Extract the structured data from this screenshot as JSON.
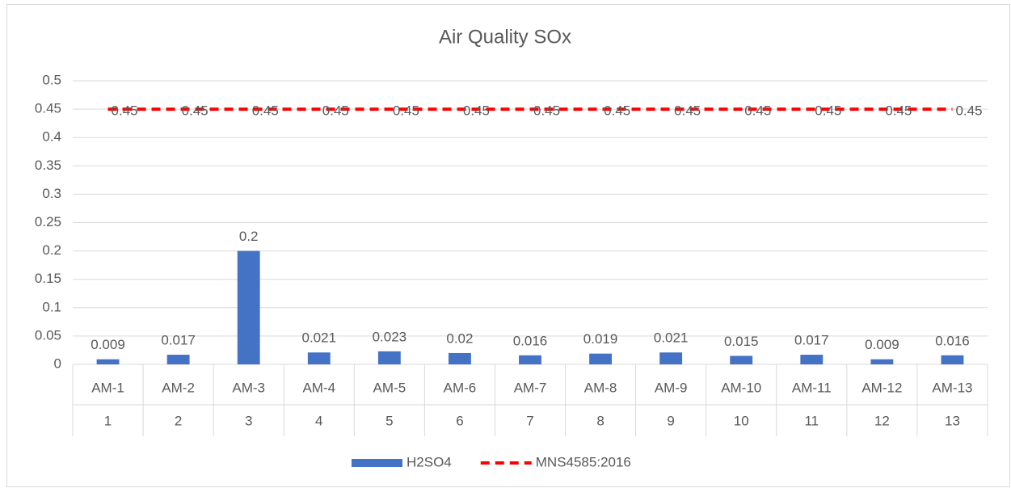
{
  "chart_data": {
    "type": "bar",
    "title": "Air Quality SOx",
    "categories": [
      "AM-1",
      "AM-2",
      "AM-3",
      "AM-4",
      "AM-5",
      "AM-6",
      "AM-7",
      "AM-8",
      "AM-9",
      "AM-10",
      "AM-11",
      "AM-12",
      "AM-13"
    ],
    "categories_level2": [
      "1",
      "2",
      "3",
      "4",
      "5",
      "6",
      "7",
      "8",
      "9",
      "10",
      "11",
      "12",
      "13"
    ],
    "series": [
      {
        "name": "H2SO4",
        "type": "bar",
        "color": "#4472c4",
        "values": [
          0.009,
          0.017,
          0.2,
          0.021,
          0.023,
          0.02,
          0.016,
          0.019,
          0.021,
          0.015,
          0.017,
          0.009,
          0.016
        ]
      },
      {
        "name": "MNS4585:2016",
        "type": "line",
        "color": "#ff0000",
        "dashed": true,
        "values": [
          0.45,
          0.45,
          0.45,
          0.45,
          0.45,
          0.45,
          0.45,
          0.45,
          0.45,
          0.45,
          0.45,
          0.45,
          0.45
        ]
      }
    ],
    "ylim": [
      0,
      0.5
    ],
    "yticks": [
      0,
      0.05,
      0.1,
      0.15,
      0.2,
      0.25,
      0.3,
      0.35,
      0.4,
      0.45,
      0.5
    ],
    "grid": true,
    "data_labels": true,
    "legend": "bottom"
  }
}
